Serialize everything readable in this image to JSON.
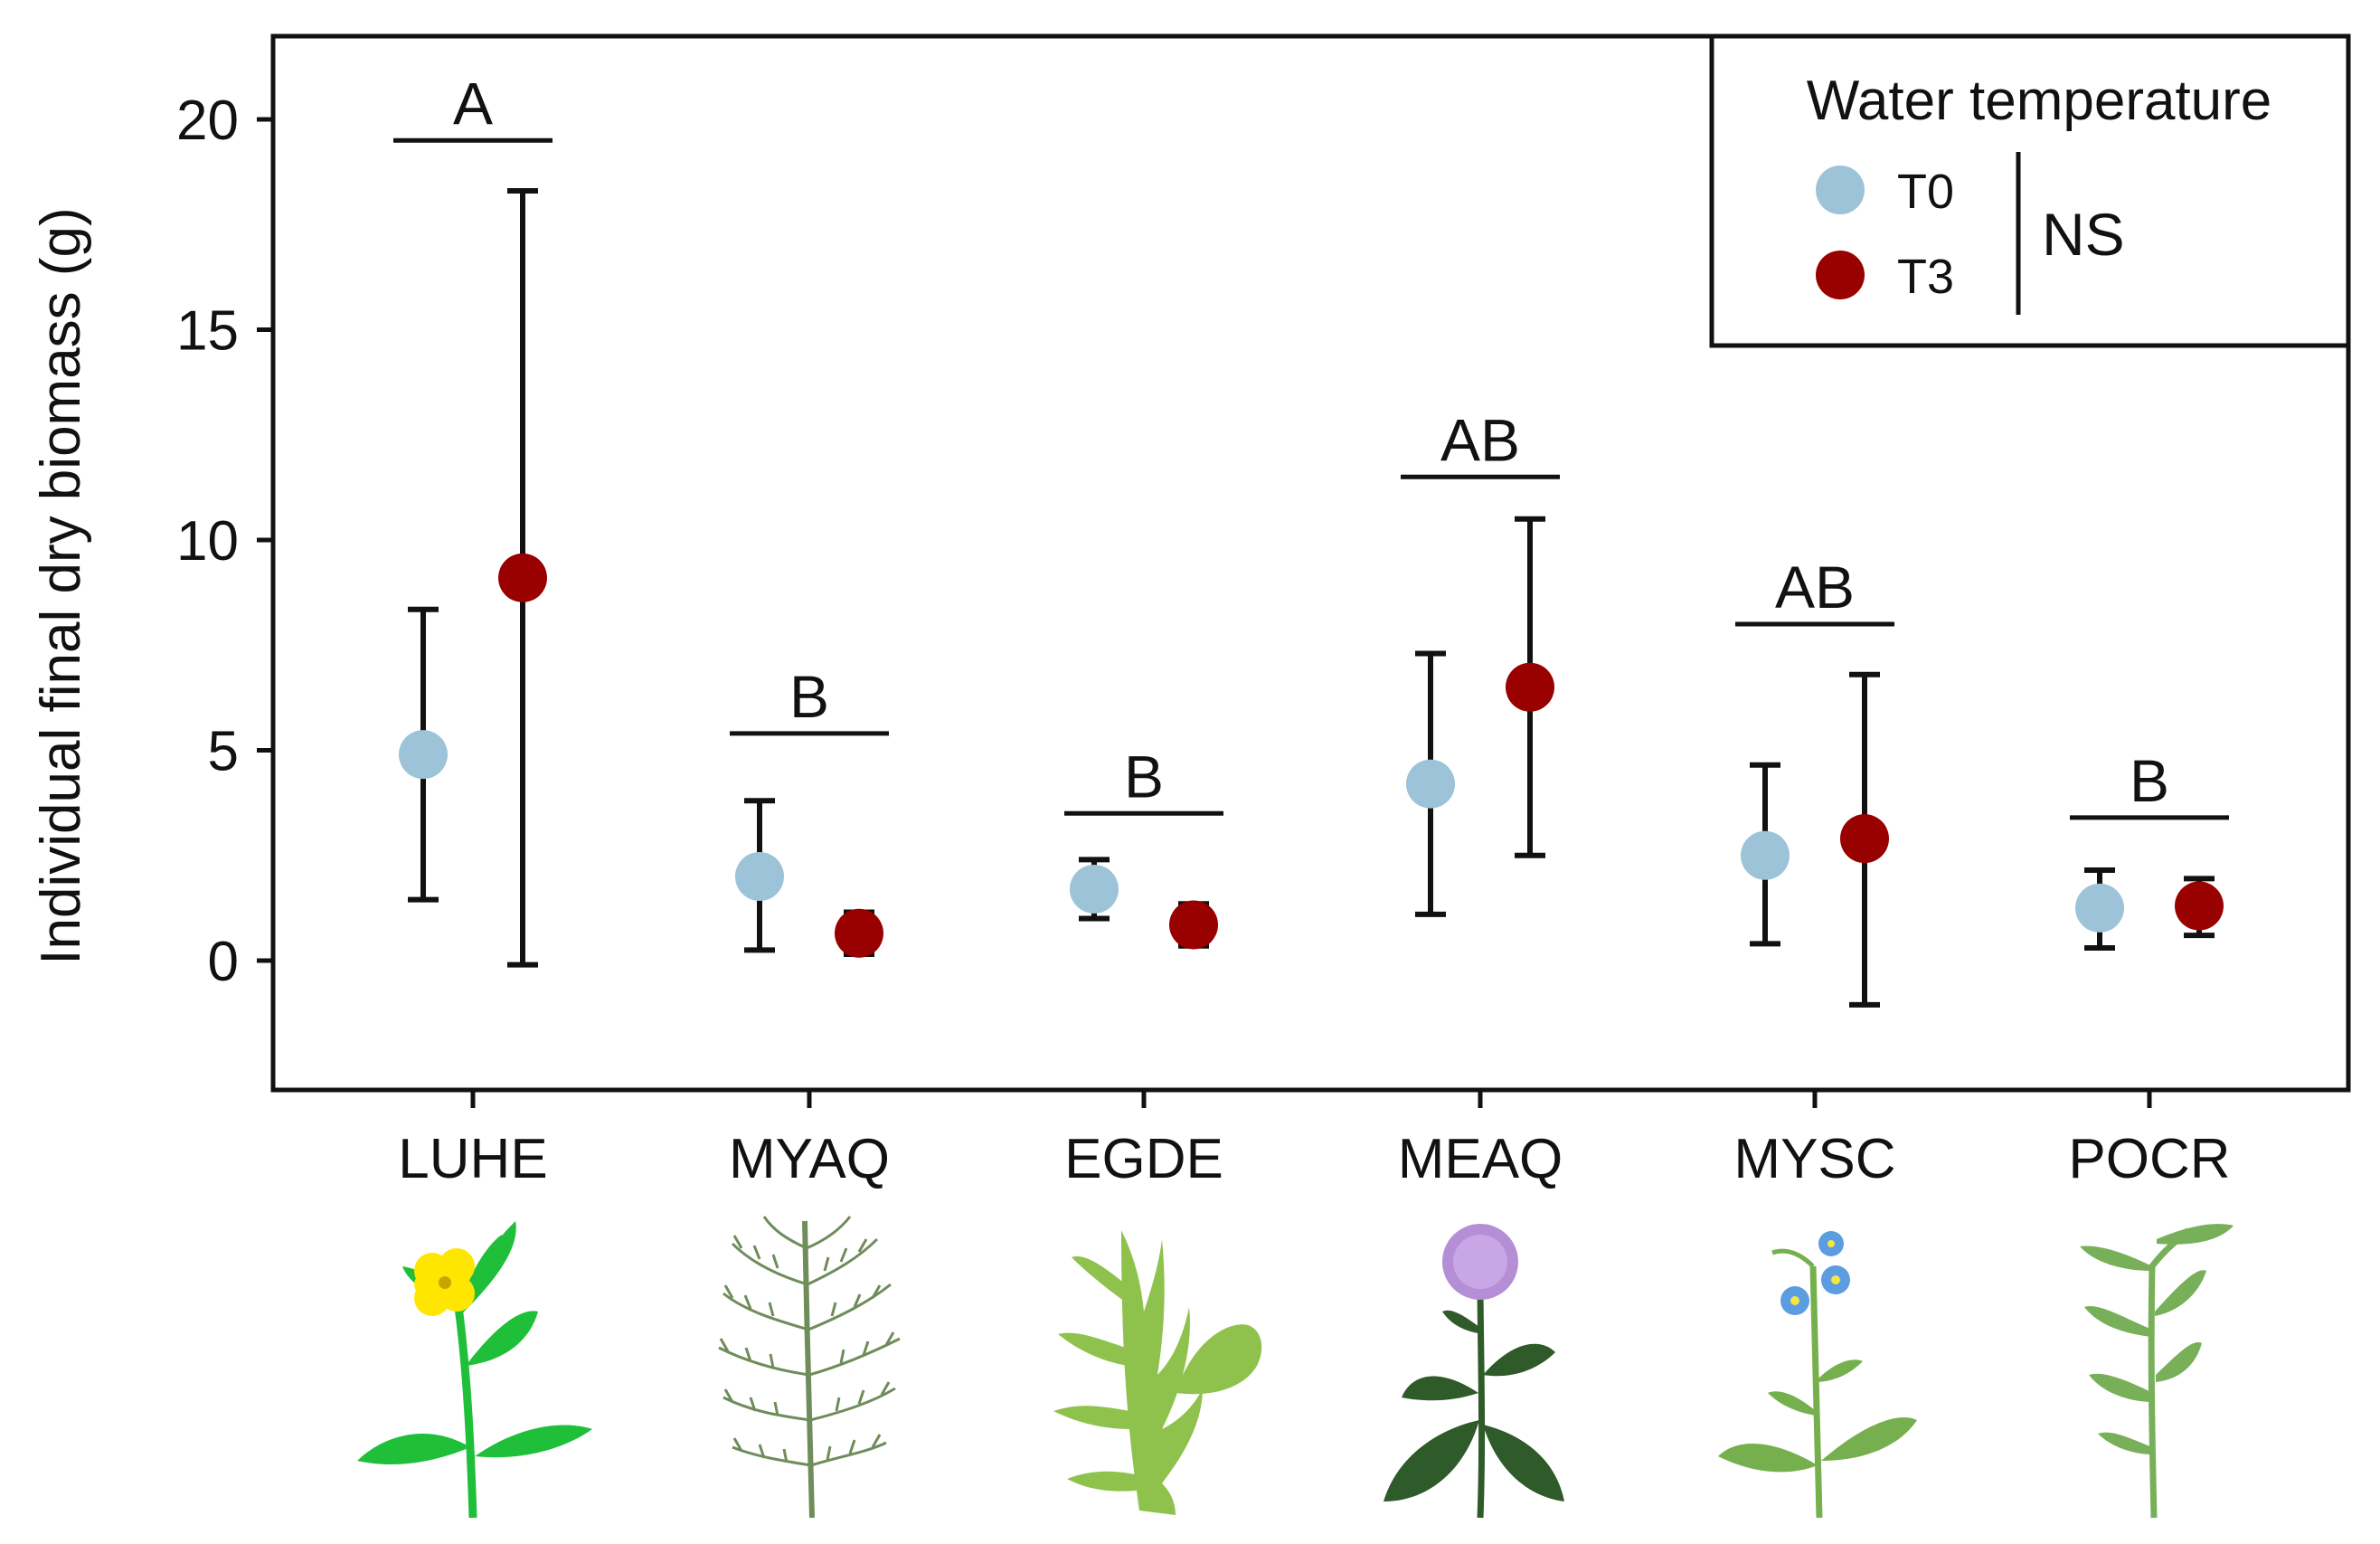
{
  "chart_data": {
    "type": "scatter",
    "subtype": "mean-with-error-bars",
    "title": "",
    "xlabel": "",
    "ylabel": "Individual final dry biomass (g)",
    "ylim": [
      -3,
      22
    ],
    "yticks": [
      0,
      5,
      10,
      15,
      20
    ],
    "tick_labels": [
      "0",
      "5",
      "10",
      "15",
      "20"
    ],
    "categories": [
      "LUHE",
      "MYAQ",
      "EGDE",
      "MEAQ",
      "MYSC",
      "POCR"
    ],
    "series": [
      {
        "name": "T0",
        "color": "#9cc3d8",
        "means": [
          4.9,
          2.0,
          1.7,
          4.2,
          2.5,
          1.25
        ],
        "err_low": [
          1.45,
          0.25,
          1.0,
          1.1,
          0.4,
          0.3
        ],
        "err_high": [
          8.35,
          3.8,
          2.4,
          7.3,
          4.65,
          2.15
        ]
      },
      {
        "name": "T3",
        "color": "#990000",
        "means": [
          9.1,
          0.65,
          0.85,
          6.5,
          2.9,
          1.3
        ],
        "err_low": [
          -0.1,
          0.15,
          0.35,
          2.5,
          -1.05,
          0.6
        ],
        "err_high": [
          18.3,
          1.15,
          1.35,
          10.5,
          6.8,
          1.95
        ]
      }
    ],
    "significance": [
      {
        "category": "LUHE",
        "letter": "A",
        "y": 19.5
      },
      {
        "category": "MYAQ",
        "letter": "B",
        "y": 5.4
      },
      {
        "category": "EGDE",
        "letter": "B",
        "y": 3.5
      },
      {
        "category": "MEAQ",
        "letter": "AB",
        "y": 11.5
      },
      {
        "category": "MYSC",
        "letter": "AB",
        "y": 8.0
      },
      {
        "category": "POCR",
        "letter": "B",
        "y": 3.4
      }
    ],
    "legend": {
      "title": "Water temperature",
      "entries": [
        "T0",
        "T3"
      ],
      "note": "NS",
      "placement": "top-right"
    }
  },
  "plants": [
    {
      "category": "LUHE",
      "icon": "yellow-flower-plant-icon"
    },
    {
      "category": "MYAQ",
      "icon": "feathery-milfoil-plant-icon"
    },
    {
      "category": "EGDE",
      "icon": "waterweed-plant-icon"
    },
    {
      "category": "MEAQ",
      "icon": "mint-plant-icon"
    },
    {
      "category": "MYSC",
      "icon": "forget-me-not-plant-icon"
    },
    {
      "category": "POCR",
      "icon": "pondweed-plant-icon"
    }
  ]
}
